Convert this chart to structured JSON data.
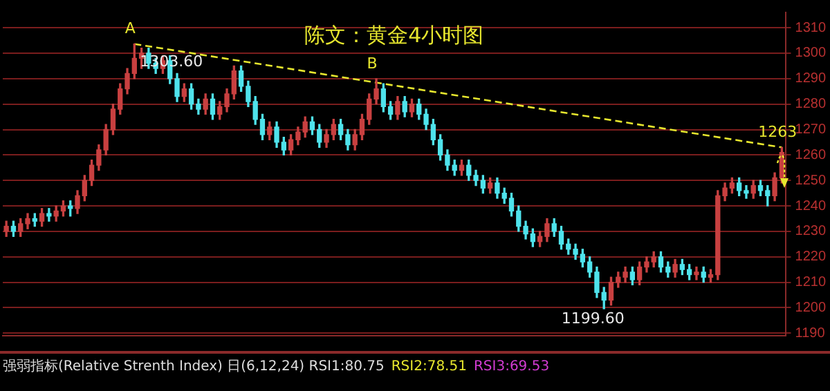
{
  "chart_data": {
    "type": "candlestick",
    "title": "陈文：黄金4小时图",
    "categories": [
      null,
      null,
      null,
      null,
      null,
      null,
      null,
      null,
      null,
      null,
      null,
      null,
      null,
      null,
      null,
      null,
      null,
      null,
      null,
      null,
      null,
      null,
      null,
      null,
      null,
      null,
      null,
      null,
      null,
      null,
      null,
      null,
      null,
      null,
      null,
      null,
      null,
      null,
      null,
      null,
      null,
      null,
      null,
      null,
      null,
      null,
      null,
      null,
      null,
      null,
      null,
      null,
      null,
      null,
      null,
      null,
      null,
      null,
      null,
      null,
      null,
      null,
      null,
      null,
      null,
      null,
      null,
      null,
      null,
      null,
      null,
      null,
      null,
      null,
      null,
      null,
      null,
      null,
      null,
      null,
      null,
      null,
      null,
      null,
      null,
      null,
      null,
      null,
      null,
      null,
      null,
      null,
      null,
      null,
      null,
      null,
      null,
      null,
      null,
      null,
      null,
      null,
      null,
      null,
      null,
      null,
      null,
      null,
      null,
      null
    ],
    "ohlc": [
      [
        1230,
        1234,
        1228,
        1232
      ],
      [
        1232,
        1234,
        1228,
        1230
      ],
      [
        1230,
        1235,
        1228,
        1233
      ],
      [
        1233,
        1237,
        1231,
        1235
      ],
      [
        1235,
        1237,
        1232,
        1234
      ],
      [
        1234,
        1239,
        1232,
        1237
      ],
      [
        1237,
        1239,
        1234,
        1236
      ],
      [
        1236,
        1240,
        1234,
        1238
      ],
      [
        1238,
        1242,
        1236,
        1240
      ],
      [
        1240,
        1242,
        1236,
        1239
      ],
      [
        1239,
        1246,
        1237,
        1244
      ],
      [
        1244,
        1252,
        1242,
        1250
      ],
      [
        1250,
        1258,
        1248,
        1256
      ],
      [
        1256,
        1264,
        1254,
        1262
      ],
      [
        1262,
        1272,
        1260,
        1270
      ],
      [
        1270,
        1280,
        1268,
        1278
      ],
      [
        1278,
        1288,
        1276,
        1286
      ],
      [
        1286,
        1294,
        1284,
        1292
      ],
      [
        1292,
        1303.6,
        1290,
        1298
      ],
      [
        1298,
        1302,
        1294,
        1300
      ],
      [
        1300,
        1302,
        1294,
        1296
      ],
      [
        1296,
        1298,
        1292,
        1294
      ],
      [
        1294,
        1299,
        1292,
        1297
      ],
      [
        1297,
        1299,
        1288,
        1290
      ],
      [
        1290,
        1292,
        1281,
        1283
      ],
      [
        1283,
        1288,
        1281,
        1286
      ],
      [
        1286,
        1288,
        1278,
        1280
      ],
      [
        1280,
        1282,
        1276,
        1278
      ],
      [
        1278,
        1284,
        1276,
        1282
      ],
      [
        1282,
        1284,
        1274,
        1276
      ],
      [
        1276,
        1281,
        1274,
        1279
      ],
      [
        1279,
        1286,
        1277,
        1284
      ],
      [
        1284,
        1295,
        1282,
        1293
      ],
      [
        1293,
        1295,
        1285,
        1287
      ],
      [
        1287,
        1289,
        1279,
        1281
      ],
      [
        1281,
        1283,
        1272,
        1274
      ],
      [
        1274,
        1276,
        1266,
        1268
      ],
      [
        1268,
        1273,
        1266,
        1271
      ],
      [
        1271,
        1273,
        1263,
        1265
      ],
      [
        1265,
        1267,
        1260,
        1262
      ],
      [
        1262,
        1268,
        1260,
        1266
      ],
      [
        1266,
        1271,
        1264,
        1269
      ],
      [
        1269,
        1275,
        1267,
        1273
      ],
      [
        1273,
        1275,
        1268,
        1270
      ],
      [
        1270,
        1272,
        1263,
        1265
      ],
      [
        1265,
        1270,
        1263,
        1268
      ],
      [
        1268,
        1274,
        1266,
        1272
      ],
      [
        1272,
        1274,
        1266,
        1268
      ],
      [
        1268,
        1270,
        1262,
        1264
      ],
      [
        1264,
        1270,
        1262,
        1268
      ],
      [
        1268,
        1276,
        1266,
        1274
      ],
      [
        1274,
        1284,
        1272,
        1282
      ],
      [
        1282,
        1290,
        1280,
        1286
      ],
      [
        1286,
        1288,
        1277,
        1279
      ],
      [
        1279,
        1281,
        1274,
        1276
      ],
      [
        1276,
        1283,
        1274,
        1281
      ],
      [
        1281,
        1283,
        1275,
        1277
      ],
      [
        1277,
        1282,
        1275,
        1280
      ],
      [
        1280,
        1282,
        1274,
        1276
      ],
      [
        1276,
        1278,
        1270,
        1272
      ],
      [
        1272,
        1274,
        1264,
        1266
      ],
      [
        1266,
        1268,
        1258,
        1260
      ],
      [
        1260,
        1262,
        1254,
        1256
      ],
      [
        1256,
        1258,
        1252,
        1254
      ],
      [
        1254,
        1258,
        1252,
        1256
      ],
      [
        1256,
        1258,
        1250,
        1252
      ],
      [
        1252,
        1254,
        1248,
        1250
      ],
      [
        1250,
        1252,
        1245,
        1247
      ],
      [
        1247,
        1251,
        1245,
        1249
      ],
      [
        1249,
        1251,
        1243,
        1245
      ],
      [
        1245,
        1247,
        1241,
        1243
      ],
      [
        1243,
        1245,
        1236,
        1238
      ],
      [
        1238,
        1240,
        1230,
        1232
      ],
      [
        1232,
        1234,
        1227,
        1229
      ],
      [
        1229,
        1231,
        1224,
        1226
      ],
      [
        1226,
        1230,
        1224,
        1228
      ],
      [
        1228,
        1235,
        1226,
        1233
      ],
      [
        1233,
        1235,
        1228,
        1230
      ],
      [
        1230,
        1232,
        1223,
        1225
      ],
      [
        1225,
        1227,
        1221,
        1223
      ],
      [
        1223,
        1225,
        1219,
        1221
      ],
      [
        1221,
        1223,
        1216,
        1218
      ],
      [
        1218,
        1220,
        1212,
        1214
      ],
      [
        1214,
        1216,
        1204,
        1206
      ],
      [
        1206,
        1208,
        1199.6,
        1203
      ],
      [
        1203,
        1212,
        1201,
        1210
      ],
      [
        1210,
        1214,
        1208,
        1212
      ],
      [
        1212,
        1216,
        1210,
        1214
      ],
      [
        1214,
        1216,
        1209,
        1211
      ],
      [
        1211,
        1218,
        1209,
        1216
      ],
      [
        1216,
        1220,
        1214,
        1218
      ],
      [
        1218,
        1222,
        1216,
        1220
      ],
      [
        1220,
        1222,
        1214,
        1216
      ],
      [
        1216,
        1218,
        1212,
        1214
      ],
      [
        1214,
        1219,
        1212,
        1217
      ],
      [
        1217,
        1219,
        1213,
        1215
      ],
      [
        1215,
        1217,
        1211,
        1213
      ],
      [
        1213,
        1216,
        1211,
        1214
      ],
      [
        1214,
        1216,
        1210,
        1212
      ],
      [
        1212,
        1215,
        1210,
        1213
      ],
      [
        1213,
        1246,
        1211,
        1244
      ],
      [
        1244,
        1249,
        1242,
        1247
      ],
      [
        1247,
        1251,
        1245,
        1249
      ],
      [
        1249,
        1251,
        1244,
        1246
      ],
      [
        1246,
        1248,
        1243,
        1245
      ],
      [
        1245,
        1250,
        1243,
        1248
      ],
      [
        1248,
        1250,
        1244,
        1246
      ],
      [
        1246,
        1248,
        1240,
        1244
      ],
      [
        1244,
        1253,
        1242,
        1251
      ],
      [
        1251,
        1263,
        1249,
        1261
      ]
    ],
    "colors": [
      "#c84040",
      "#4fe3ec",
      "#c84040",
      "#c84040",
      "#4fe3ec",
      "#c84040",
      "#4fe3ec",
      "#c84040",
      "#c84040",
      "#4fe3ec",
      "#c84040",
      "#c84040",
      "#c84040",
      "#c84040",
      "#c84040",
      "#c84040",
      "#c84040",
      "#c84040",
      "#c84040",
      "#c84040",
      "#4fe3ec",
      "#4fe3ec",
      "#c84040",
      "#4fe3ec",
      "#4fe3ec",
      "#c84040",
      "#4fe3ec",
      "#4fe3ec",
      "#c84040",
      "#4fe3ec",
      "#c84040",
      "#c84040",
      "#c84040",
      "#4fe3ec",
      "#4fe3ec",
      "#4fe3ec",
      "#4fe3ec",
      "#c84040",
      "#4fe3ec",
      "#4fe3ec",
      "#c84040",
      "#c84040",
      "#c84040",
      "#4fe3ec",
      "#4fe3ec",
      "#c84040",
      "#c84040",
      "#4fe3ec",
      "#4fe3ec",
      "#c84040",
      "#c84040",
      "#c84040",
      "#c84040",
      "#4fe3ec",
      "#4fe3ec",
      "#c84040",
      "#4fe3ec",
      "#c84040",
      "#4fe3ec",
      "#4fe3ec",
      "#4fe3ec",
      "#4fe3ec",
      "#4fe3ec",
      "#4fe3ec",
      "#c84040",
      "#4fe3ec",
      "#4fe3ec",
      "#4fe3ec",
      "#c84040",
      "#4fe3ec",
      "#4fe3ec",
      "#4fe3ec",
      "#4fe3ec",
      "#4fe3ec",
      "#4fe3ec",
      "#c84040",
      "#c84040",
      "#4fe3ec",
      "#4fe3ec",
      "#4fe3ec",
      "#4fe3ec",
      "#4fe3ec",
      "#4fe3ec",
      "#4fe3ec",
      "#4fe3ec",
      "#c84040",
      "#c84040",
      "#c84040",
      "#4fe3ec",
      "#c84040",
      "#c84040",
      "#c84040",
      "#4fe3ec",
      "#4fe3ec",
      "#c84040",
      "#4fe3ec",
      "#4fe3ec",
      "#c84040",
      "#4fe3ec",
      "#c84040",
      "#c84040",
      "#c84040",
      "#c84040",
      "#4fe3ec",
      "#4fe3ec",
      "#c84040",
      "#4fe3ec",
      "#4fe3ec",
      "#c84040",
      "#c84040"
    ],
    "series": [
      {
        "type": "line",
        "color": "#e6e62e",
        "line_style": "dashed",
        "values": [
          null,
          null,
          null,
          null,
          null,
          null,
          null,
          null,
          null,
          null,
          null,
          null,
          null,
          null,
          null,
          null,
          null,
          null,
          1303.6,
          null,
          null,
          null,
          null,
          null,
          null,
          null,
          null,
          null,
          null,
          null,
          null,
          null,
          null,
          null,
          null,
          null,
          null,
          null,
          null,
          null,
          null,
          null,
          null,
          null,
          null,
          null,
          null,
          null,
          null,
          null,
          null,
          null,
          null,
          null,
          null,
          null,
          null,
          null,
          null,
          null,
          null,
          null,
          null,
          null,
          null,
          null,
          null,
          null,
          null,
          null,
          null,
          null,
          null,
          null,
          null,
          null,
          null,
          null,
          null,
          null,
          null,
          null,
          null,
          null,
          null,
          null,
          null,
          null,
          null,
          null,
          null,
          null,
          null,
          null,
          null,
          null,
          null,
          null,
          null,
          null,
          null,
          null,
          null,
          null,
          null,
          null,
          null,
          null,
          null,
          1263
        ]
      }
    ],
    "ylim": [
      1189,
      1316
    ],
    "yticks": [
      1190,
      1200,
      1210,
      1220,
      1230,
      1240,
      1250,
      1260,
      1270,
      1280,
      1290,
      1300,
      1310
    ],
    "grid": "y",
    "legend": false,
    "tick_labels": "y",
    "annotations": [
      {
        "text": "A",
        "y": 1303.6
      },
      {
        "text": "1303.60",
        "y": 1303.6
      },
      {
        "text": "B",
        "y": 1290
      },
      {
        "text": "1263",
        "y": 1263
      },
      "1199.60",
      "强弱指标(Relative Strenth Index) 日(6,12,24) RSI1:80.75",
      "RSI2:78.51",
      "RSI3:69.53"
    ]
  }
}
